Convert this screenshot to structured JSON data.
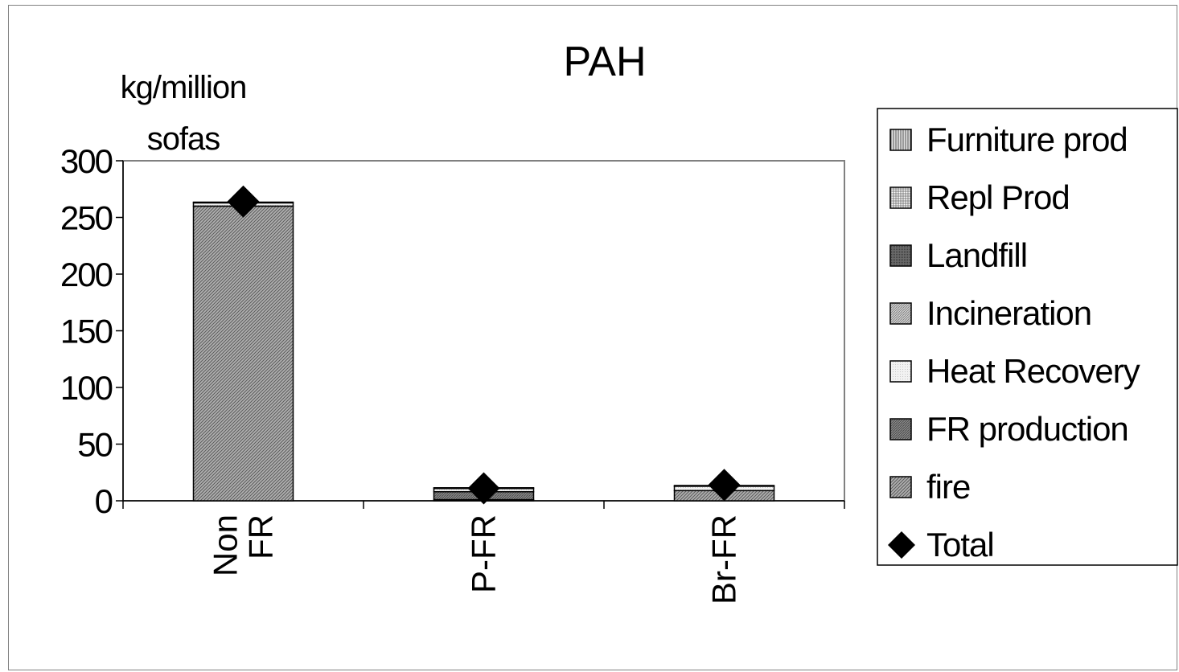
{
  "chart_data": {
    "type": "bar",
    "stacked": true,
    "title": "PAH",
    "ylabel_line1": "kg/million",
    "ylabel_line2": "sofas",
    "ylim": [
      0,
      300
    ],
    "yticks": [
      "0",
      "50",
      "100",
      "150",
      "200",
      "250",
      "300"
    ],
    "ytick_values": [
      0,
      50,
      100,
      150,
      200,
      250,
      300
    ],
    "categories": [
      {
        "line1": "Non",
        "line2": "FR"
      },
      {
        "line1": "P-FR",
        "line2": ""
      },
      {
        "line1": "Br-FR",
        "line2": ""
      }
    ],
    "series": [
      {
        "name": "Furniture prod",
        "values": [
          0.5,
          0.5,
          0.5
        ],
        "pattern": "vlines"
      },
      {
        "name": "Repl Prod",
        "values": [
          0,
          0,
          0
        ],
        "pattern": "grid"
      },
      {
        "name": "Landfill",
        "values": [
          0,
          0,
          0
        ],
        "pattern": "dark"
      },
      {
        "name": "Incineration",
        "values": [
          0,
          0,
          0
        ],
        "pattern": "dots"
      },
      {
        "name": "Heat Recovery",
        "values": [
          3,
          3,
          4
        ],
        "pattern": "light"
      },
      {
        "name": "FR production",
        "values": [
          0,
          7,
          0
        ],
        "pattern": "dark2"
      },
      {
        "name": "fire",
        "values": [
          260,
          1,
          9
        ],
        "pattern": "diag"
      }
    ],
    "total": {
      "name": "Total",
      "values": [
        264,
        11,
        14
      ]
    },
    "grid": false,
    "legend_position": "right"
  }
}
